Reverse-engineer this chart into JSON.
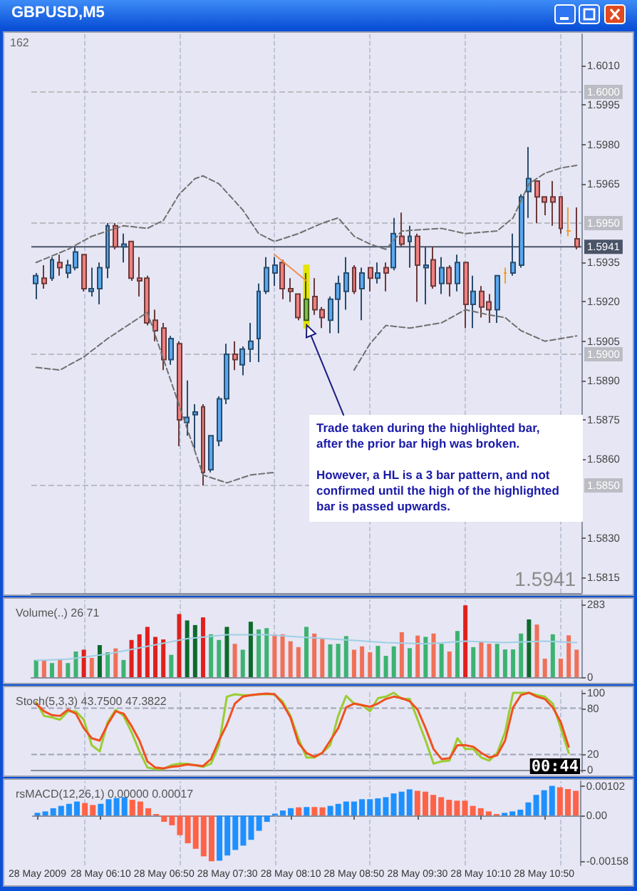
{
  "chart_data": [
    {
      "type": "candlestick",
      "title": "GBPUSD,M5",
      "tick_labels": "y",
      "xlim": [
        "2009-05-28T05:27",
        "2009-05-28T11:13"
      ],
      "x": [
        "2009-05-28T05:30",
        "2009-05-28T05:35",
        "2009-05-28T05:40",
        "2009-05-28T05:45",
        "2009-05-28T05:50",
        "2009-05-28T05:55",
        "2009-05-28T06:00",
        "2009-05-28T06:05",
        "2009-05-28T06:10",
        "2009-05-28T06:15",
        "2009-05-28T06:20",
        "2009-05-28T06:25",
        "2009-05-28T06:30",
        "2009-05-28T06:35",
        "2009-05-28T06:40",
        "2009-05-28T06:45",
        "2009-05-28T06:50",
        "2009-05-28T06:55",
        "2009-05-28T07:00",
        "2009-05-28T07:05",
        "2009-05-28T07:10",
        "2009-05-28T07:15",
        "2009-05-28T07:20",
        "2009-05-28T07:25",
        "2009-05-28T07:30",
        "2009-05-28T07:35",
        "2009-05-28T07:40",
        "2009-05-28T07:45",
        "2009-05-28T07:50",
        "2009-05-28T07:55",
        "2009-05-28T08:00",
        "2009-05-28T08:05",
        "2009-05-28T08:10",
        "2009-05-28T08:15",
        "2009-05-28T08:20",
        "2009-05-28T08:25",
        "2009-05-28T08:30",
        "2009-05-28T08:35",
        "2009-05-28T08:40",
        "2009-05-28T08:45",
        "2009-05-28T08:50",
        "2009-05-28T08:55",
        "2009-05-28T09:00",
        "2009-05-28T09:05",
        "2009-05-28T09:10",
        "2009-05-28T09:15",
        "2009-05-28T09:20",
        "2009-05-28T09:25",
        "2009-05-28T09:30",
        "2009-05-28T09:35",
        "2009-05-28T09:40",
        "2009-05-28T09:45",
        "2009-05-28T09:50",
        "2009-05-28T09:55",
        "2009-05-28T10:00",
        "2009-05-28T10:05",
        "2009-05-28T10:10",
        "2009-05-28T10:15",
        "2009-05-28T10:20",
        "2009-05-28T10:25",
        "2009-05-28T10:30",
        "2009-05-28T10:35",
        "2009-05-28T10:40",
        "2009-05-28T10:45",
        "2009-05-28T10:50",
        "2009-05-28T10:55",
        "2009-05-28T11:00",
        "2009-05-28T11:05",
        "2009-05-28T11:10"
      ],
      "ohlc": [
        [
          1.5927,
          1.5931,
          1.5921,
          1.593
        ],
        [
          1.5929,
          1.5934,
          1.5925,
          1.5927
        ],
        [
          1.5929,
          1.5937,
          1.5928,
          1.5936
        ],
        [
          1.5935,
          1.5938,
          1.593,
          1.5933
        ],
        [
          1.5931,
          1.5936,
          1.5929,
          1.5934
        ],
        [
          1.5933,
          1.5941,
          1.5932,
          1.5939
        ],
        [
          1.5938,
          1.5938,
          1.5924,
          1.5925
        ],
        [
          1.5924,
          1.5933,
          1.5922,
          1.5925
        ],
        [
          1.5925,
          1.5935,
          1.5919,
          1.5933
        ],
        [
          1.5933,
          1.595,
          1.5929,
          1.5949
        ],
        [
          1.5949,
          1.595,
          1.594,
          1.5941
        ],
        [
          1.5941,
          1.5946,
          1.5935,
          1.5942
        ],
        [
          1.5943,
          1.5943,
          1.5928,
          1.5929
        ],
        [
          1.5929,
          1.5937,
          1.5922,
          1.5928
        ],
        [
          1.5929,
          1.593,
          1.5911,
          1.5912
        ],
        [
          1.5913,
          1.5917,
          1.5905,
          1.5909
        ],
        [
          1.591,
          1.5912,
          1.5894,
          1.5898
        ],
        [
          1.5898,
          1.5907,
          1.5896,
          1.5906
        ],
        [
          1.5904,
          1.5905,
          1.5865,
          1.5875
        ],
        [
          1.5874,
          1.589,
          1.5869,
          1.5876
        ],
        [
          1.5877,
          1.5881,
          1.5864,
          1.5878
        ],
        [
          1.588,
          1.5881,
          1.585,
          1.5855
        ],
        [
          1.5856,
          1.5869,
          1.5855,
          1.5869
        ],
        [
          1.5867,
          1.5884,
          1.5865,
          1.5883
        ],
        [
          1.5883,
          1.5904,
          1.5881,
          1.59
        ],
        [
          1.59,
          1.5905,
          1.5894,
          1.5898
        ],
        [
          1.5896,
          1.5903,
          1.5892,
          1.5902
        ],
        [
          1.5902,
          1.5912,
          1.5897,
          1.5905
        ],
        [
          1.5906,
          1.5927,
          1.5897,
          1.5924
        ],
        [
          1.5924,
          1.5937,
          1.5923,
          1.5933
        ],
        [
          1.5931,
          1.5937,
          1.5926,
          1.5934
        ],
        [
          1.5935,
          1.5936,
          1.5921,
          1.5925
        ],
        [
          1.5925,
          1.5929,
          1.592,
          1.5924
        ],
        [
          1.5923,
          1.5923,
          1.5913,
          1.5914
        ],
        [
          1.5913,
          1.5931,
          1.5913,
          1.5921
        ],
        [
          1.5922,
          1.5929,
          1.5915,
          1.5917
        ],
        [
          1.5917,
          1.5918,
          1.591,
          1.5914
        ],
        [
          1.5913,
          1.5922,
          1.5908,
          1.5921
        ],
        [
          1.5921,
          1.593,
          1.5908,
          1.5927
        ],
        [
          1.5924,
          1.5937,
          1.5917,
          1.5931
        ],
        [
          1.5933,
          1.5934,
          1.5923,
          1.5924
        ],
        [
          1.5925,
          1.5933,
          1.5913,
          1.5931
        ],
        [
          1.5933,
          1.5933,
          1.5924,
          1.5929
        ],
        [
          1.5929,
          1.5935,
          1.5927,
          1.5931
        ],
        [
          1.5933,
          1.5935,
          1.5924,
          1.5931
        ],
        [
          1.5933,
          1.5952,
          1.5932,
          1.5946
        ],
        [
          1.5945,
          1.5954,
          1.5941,
          1.5942
        ],
        [
          1.5943,
          1.5949,
          1.5933,
          1.5945
        ],
        [
          1.5945,
          1.5946,
          1.592,
          1.5934
        ],
        [
          1.5933,
          1.5941,
          1.5919,
          1.5934
        ],
        [
          1.5936,
          1.5941,
          1.5925,
          1.5926
        ],
        [
          1.5927,
          1.5937,
          1.5923,
          1.5933
        ],
        [
          1.5933,
          1.5934,
          1.5922,
          1.5927
        ],
        [
          1.5927,
          1.5938,
          1.5924,
          1.5935
        ],
        [
          1.5935,
          1.5935,
          1.591,
          1.5919
        ],
        [
          1.5919,
          1.593,
          1.591,
          1.5924
        ],
        [
          1.5924,
          1.5926,
          1.5914,
          1.5918
        ],
        [
          1.592,
          1.5923,
          1.5912,
          1.5917
        ],
        [
          1.5917,
          1.593,
          1.5912,
          1.593
        ],
        [
          1.5931,
          1.5933,
          1.5927,
          1.5931
        ],
        [
          1.5931,
          1.5946,
          1.593,
          1.5935
        ],
        [
          1.5934,
          1.5961,
          1.5933,
          1.596
        ],
        [
          1.5962,
          1.5979,
          1.5952,
          1.5967
        ],
        [
          1.5966,
          1.5966,
          1.595,
          1.596
        ],
        [
          1.596,
          1.596,
          1.5953,
          1.5958
        ],
        [
          1.596,
          1.5966,
          1.5949,
          1.5958
        ],
        [
          1.596,
          1.596,
          1.5946,
          1.5948
        ],
        [
          1.5947,
          1.5956,
          1.5945,
          1.5947
        ],
        [
          1.5944,
          1.5956,
          1.594,
          1.5941
        ]
      ],
      "colors": [
        "#5aa8f0",
        "#f08080",
        "#5aa8f0",
        "#f08080",
        "#5aa8f0",
        "#5aa8f0",
        "#f08080",
        "#5aa8f0",
        "#5aa8f0",
        "#5aa8f0",
        "#f08080",
        "#5aa8f0",
        "#f08080",
        "#f08080",
        "#f08080",
        "#f08080",
        "#f08080",
        "#5aa8f0",
        "#f08080",
        "#5aa8f0",
        "#5aa8f0",
        "#f08080",
        "#5aa8f0",
        "#5aa8f0",
        "#5aa8f0",
        "#f08080",
        "#5aa8f0",
        "#5aa8f0",
        "#5aa8f0",
        "#5aa8f0",
        "#5aa8f0",
        "#f08080",
        "#f08080",
        "#f08080",
        "#7cc040",
        "#f08080",
        "#f08080",
        "#5aa8f0",
        "#5aa8f0",
        "#5aa8f0",
        "#f08080",
        "#5aa8f0",
        "#f08080",
        "#5aa8f0",
        "#f08080",
        "#5aa8f0",
        "#f08080",
        "#5aa8f0",
        "#f08080",
        "#5aa8f0",
        "#f08080",
        "#5aa8f0",
        "#f08080",
        "#5aa8f0",
        "#f08080",
        "#5aa8f0",
        "#f08080",
        "#f08080",
        "#5aa8f0",
        "#f0a030",
        "#5aa8f0",
        "#5aa8f0",
        "#5aa8f0",
        "#f08080",
        "#f08080",
        "#f08080",
        "#f08080",
        "#f0a030",
        "#f08080"
      ],
      "series": [
        {
          "type": "line",
          "color": "#707070",
          "line_style": "dashed",
          "x": [
            "2009-05-28T05:30",
            "2009-05-28T05:50",
            "2009-05-28T06:05",
            "2009-05-28T06:25",
            "2009-05-28T06:40",
            "2009-05-28T06:50",
            "2009-05-28T07:00",
            "2009-05-28T07:10",
            "2009-05-28T07:15",
            "2009-05-28T07:25",
            "2009-05-28T07:40",
            "2009-05-28T07:50",
            "2009-05-28T08:00",
            "2009-05-28T08:15",
            "2009-05-28T08:30",
            "2009-05-28T08:40",
            "2009-05-28T08:50",
            "2009-05-28T09:00",
            "2009-05-28T09:10",
            "2009-05-28T09:20",
            "2009-05-28T09:45",
            "2009-05-28T10:00",
            "2009-05-28T10:20",
            "2009-05-28T10:30",
            "2009-05-28T10:40",
            "2009-05-28T10:50",
            "2009-05-28T11:00",
            "2009-05-28T11:10"
          ],
          "values": [
            1.5935,
            1.594,
            1.5945,
            1.5949,
            1.5948,
            1.5951,
            1.5961,
            1.5967,
            1.5968,
            1.5965,
            1.5955,
            1.5946,
            1.5943,
            1.5946,
            1.595,
            1.5952,
            1.5945,
            1.5942,
            1.594,
            1.5947,
            1.5948,
            1.5946,
            1.5947,
            1.5952,
            1.5965,
            1.5969,
            1.5971,
            1.5972
          ]
        },
        {
          "type": "line",
          "color": "#707070",
          "line_style": "dashed",
          "x": [
            "2009-05-28T05:30",
            "2009-05-28T05:45",
            "2009-05-28T06:00",
            "2009-05-28T06:15",
            "2009-05-28T06:30",
            "2009-05-28T06:40",
            "2009-05-28T07:15",
            "2009-05-28T07:30",
            "2009-05-28T07:45",
            "2009-05-28T08:00"
          ],
          "values": [
            1.5895,
            1.5894,
            1.5899,
            1.5906,
            1.5912,
            1.5916,
            1.5854,
            1.5851,
            1.5854,
            1.5855
          ]
        },
        {
          "type": "line",
          "color": "#707070",
          "line_style": "dashed",
          "x": [
            "2009-05-28T08:50",
            "2009-05-28T09:00",
            "2009-05-28T09:10",
            "2009-05-28T09:25",
            "2009-05-28T09:45",
            "2009-05-28T10:00",
            "2009-05-28T10:15",
            "2009-05-28T10:25",
            "2009-05-28T10:35",
            "2009-05-28T10:50",
            "2009-05-28T11:10"
          ],
          "values": [
            1.5894,
            1.5904,
            1.5911,
            1.591,
            1.5912,
            1.5917,
            1.5915,
            1.5914,
            1.5909,
            1.5905,
            1.5907
          ]
        },
        {
          "type": "line",
          "color": "#f09050",
          "x": [
            "2009-05-28T08:00",
            "2009-05-28T08:20"
          ],
          "values": [
            1.5938,
            1.5928
          ]
        }
      ],
      "ylim": [
        1.5809,
        1.6022
      ],
      "yticks": [
        {
          "value": 1.601,
          "label": "1.6010"
        },
        1.5995,
        {
          "value": 1.598,
          "label": "1.5980"
        },
        1.5965,
        1.5935,
        {
          "value": 1.592,
          "label": "1.5920"
        },
        1.5905,
        {
          "value": 1.589,
          "label": "1.5890"
        },
        1.5875,
        {
          "value": 1.586,
          "label": "1.5860"
        },
        {
          "value": 1.583,
          "label": "1.5830"
        },
        1.5815
      ],
      "bands": [
        {
          "axis": "x",
          "from": "2009-05-28T08:18",
          "to": "2009-05-28T08:22",
          "color": "#e4e400"
        }
      ],
      "ref_lines": [
        {
          "axis": "y",
          "value": 1.6,
          "label": "1.6000",
          "color": "#bcbcc4",
          "line_style": "dashed"
        },
        {
          "axis": "y",
          "value": 1.595,
          "label": "1.5950",
          "color": "#bcbcc4",
          "line_style": "dashed"
        },
        {
          "axis": "y",
          "value": 1.59,
          "label": "1.5900",
          "color": "#bcbcc4",
          "line_style": "dashed"
        },
        {
          "axis": "y",
          "value": 1.585,
          "label": "1.5850",
          "color": "#bcbcc4",
          "line_style": "dashed"
        },
        {
          "axis": "y",
          "value": 1.5941,
          "label": "1.5941",
          "color": "#4a5468",
          "line_style": "solid"
        },
        {
          "axis": "x",
          "value": "2009-05-28T06:00",
          "color": "#b4bcd4",
          "line_style": "dashed"
        },
        {
          "axis": "x",
          "value": "2009-05-28T07:00",
          "color": "#b4bcd4",
          "line_style": "dashed"
        },
        {
          "axis": "x",
          "value": "2009-05-28T08:00",
          "color": "#b4bcd4",
          "line_style": "dashed"
        },
        {
          "axis": "x",
          "value": "2009-05-28T09:00",
          "color": "#b4bcd4",
          "line_style": "dashed"
        },
        {
          "axis": "x",
          "value": "2009-05-28T10:00",
          "color": "#b4bcd4",
          "line_style": "dashed"
        },
        {
          "axis": "x",
          "value": "2009-05-28T11:00",
          "color": "#b4bcd4",
          "line_style": "dashed"
        }
      ],
      "annotations": [
        "162",
        {
          "text": "Trade taken during the highlighted bar,\nafter the prior bar high was broken.",
          "x": "2009-05-28T08:20",
          "y": 1.5913
        },
        "However, a HL is a 3 bar pattern, and not\nconfirmed until the high of the highlighted\nbar is passed upwards.",
        "1.5941"
      ]
    },
    {
      "type": "bar",
      "title": "Volume(..) 26 71",
      "tick_labels": "y",
      "xlim": [
        "2009-05-28T05:27",
        "2009-05-28T11:13"
      ],
      "x": [
        "2009-05-28T05:30",
        "2009-05-28T05:35",
        "2009-05-28T05:40",
        "2009-05-28T05:45",
        "2009-05-28T05:50",
        "2009-05-28T05:55",
        "2009-05-28T06:00",
        "2009-05-28T06:05",
        "2009-05-28T06:10",
        "2009-05-28T06:15",
        "2009-05-28T06:20",
        "2009-05-28T06:25",
        "2009-05-28T06:30",
        "2009-05-28T06:35",
        "2009-05-28T06:40",
        "2009-05-28T06:45",
        "2009-05-28T06:50",
        "2009-05-28T06:55",
        "2009-05-28T07:00",
        "2009-05-28T07:05",
        "2009-05-28T07:10",
        "2009-05-28T07:15",
        "2009-05-28T07:20",
        "2009-05-28T07:25",
        "2009-05-28T07:30",
        "2009-05-28T07:35",
        "2009-05-28T07:40",
        "2009-05-28T07:45",
        "2009-05-28T07:50",
        "2009-05-28T07:55",
        "2009-05-28T08:00",
        "2009-05-28T08:05",
        "2009-05-28T08:10",
        "2009-05-28T08:15",
        "2009-05-28T08:20",
        "2009-05-28T08:25",
        "2009-05-28T08:30",
        "2009-05-28T08:35",
        "2009-05-28T08:40",
        "2009-05-28T08:45",
        "2009-05-28T08:50",
        "2009-05-28T08:55",
        "2009-05-28T09:00",
        "2009-05-28T09:05",
        "2009-05-28T09:10",
        "2009-05-28T09:15",
        "2009-05-28T09:20",
        "2009-05-28T09:25",
        "2009-05-28T09:30",
        "2009-05-28T09:35",
        "2009-05-28T09:40",
        "2009-05-28T09:45",
        "2009-05-28T09:50",
        "2009-05-28T09:55",
        "2009-05-28T10:00",
        "2009-05-28T10:05",
        "2009-05-28T10:10",
        "2009-05-28T10:15",
        "2009-05-28T10:20",
        "2009-05-28T10:25",
        "2009-05-28T10:30",
        "2009-05-28T10:35",
        "2009-05-28T10:40",
        "2009-05-28T10:45",
        "2009-05-28T10:50",
        "2009-05-28T10:55",
        "2009-05-28T11:00",
        "2009-05-28T11:05",
        "2009-05-28T11:10"
      ],
      "series": [
        {
          "values": [
            67,
            67,
            55,
            67,
            55,
            100,
            107,
            75,
            125,
            97,
            112,
            67,
            145,
            167,
            196,
            157,
            147,
            87,
            246,
            221,
            203,
            233,
            167,
            145,
            196,
            130,
            107,
            216,
            186,
            191,
            167,
            167,
            140,
            117,
            196,
            170,
            150,
            128,
            130,
            160,
            107,
            120,
            97,
            122,
            83,
            120,
            175,
            113,
            162,
            157,
            170,
            130,
            100,
            180,
            280,
            117,
            137,
            130,
            130,
            108,
            108,
            170,
            225,
            205,
            72,
            167,
            72,
            163,
            107
          ],
          "colors": [
            "#3cb371",
            "#f07058",
            "#3cb371",
            "#f07058",
            "#3cb371",
            "#3cb371",
            "#e0201c",
            "#f07058",
            "#0b6b2b",
            "#3cb371",
            "#f07058",
            "#3cb371",
            "#e0201c",
            "#e0201c",
            "#e0201c",
            "#e0201c",
            "#e0201c",
            "#3cb371",
            "#e0201c",
            "#0b6b2b",
            "#0b6b2b",
            "#e0201c",
            "#3cb371",
            "#3cb371",
            "#0b6b2b",
            "#f07058",
            "#3cb371",
            "#0b6b2b",
            "#3cb371",
            "#3cb371",
            "#f07058",
            "#f07058",
            "#f07058",
            "#f07058",
            "#3cb371",
            "#f07058",
            "#f07058",
            "#3cb371",
            "#3cb371",
            "#3cb371",
            "#f07058",
            "#f07058",
            "#f07058",
            "#3cb371",
            "#3cb371",
            "#3cb371",
            "#f07058",
            "#3cb371",
            "#f07058",
            "#3cb371",
            "#f07058",
            "#3cb371",
            "#f07058",
            "#3cb371",
            "#e0201c",
            "#3cb371",
            "#f07058",
            "#f07058",
            "#3cb371",
            "#3cb371",
            "#3cb371",
            "#3cb371",
            "#0b6b2b",
            "#f07058",
            "#f07058",
            "#3cb371",
            "#f07058",
            "#f07058",
            "#f07058"
          ]
        },
        {
          "type": "line",
          "color": "#9fd0e4",
          "x": [
            "2009-05-28T05:30",
            "2009-05-28T05:50",
            "2009-05-28T06:15",
            "2009-05-28T06:40",
            "2009-05-28T07:05",
            "2009-05-28T07:30",
            "2009-05-28T07:55",
            "2009-05-28T08:20",
            "2009-05-28T08:45",
            "2009-05-28T09:10",
            "2009-05-28T09:35",
            "2009-05-28T10:00",
            "2009-05-28T10:25",
            "2009-05-28T10:50",
            "2009-05-28T11:10"
          ],
          "values": [
            65,
            70,
            90,
            120,
            150,
            165,
            165,
            155,
            145,
            135,
            130,
            140,
            135,
            140,
            135
          ]
        }
      ],
      "ylim": [
        0,
        300
      ],
      "yticks": [
        0,
        283
      ],
      "ref_lines": [
        {
          "axis": "x",
          "value": "2009-05-28T06:00",
          "color": "#b4bcd4",
          "line_style": "dashed"
        },
        {
          "axis": "x",
          "value": "2009-05-28T07:00",
          "color": "#b4bcd4",
          "line_style": "dashed"
        },
        {
          "axis": "x",
          "value": "2009-05-28T08:00",
          "color": "#b4bcd4",
          "line_style": "dashed"
        },
        {
          "axis": "x",
          "value": "2009-05-28T09:00",
          "color": "#b4bcd4",
          "line_style": "dashed"
        },
        {
          "axis": "x",
          "value": "2009-05-28T10:00",
          "color": "#b4bcd4",
          "line_style": "dashed"
        },
        {
          "axis": "x",
          "value": "2009-05-28T11:00",
          "color": "#b4bcd4",
          "line_style": "dashed"
        }
      ]
    },
    {
      "type": "line",
      "title": "Stoch(5,3,3) 43.7500 47.3822",
      "tick_labels": "y",
      "xlim": [
        "2009-05-28T05:27",
        "2009-05-28T11:13"
      ],
      "x": [
        "2009-05-28T05:30",
        "2009-05-28T05:35",
        "2009-05-28T05:40",
        "2009-05-28T05:45",
        "2009-05-28T05:50",
        "2009-05-28T05:55",
        "2009-05-28T06:00",
        "2009-05-28T06:05",
        "2009-05-28T06:10",
        "2009-05-28T06:15",
        "2009-05-28T06:20",
        "2009-05-28T06:25",
        "2009-05-28T06:30",
        "2009-05-28T06:35",
        "2009-05-28T06:40",
        "2009-05-28T06:45",
        "2009-05-28T06:50",
        "2009-05-28T06:55",
        "2009-05-28T07:00",
        "2009-05-28T07:05",
        "2009-05-28T07:10",
        "2009-05-28T07:15",
        "2009-05-28T07:20",
        "2009-05-28T07:25",
        "2009-05-28T07:30",
        "2009-05-28T07:35",
        "2009-05-28T07:40",
        "2009-05-28T07:45",
        "2009-05-28T07:50",
        "2009-05-28T07:55",
        "2009-05-28T08:00",
        "2009-05-28T08:05",
        "2009-05-28T08:10",
        "2009-05-28T08:15",
        "2009-05-28T08:20",
        "2009-05-28T08:25",
        "2009-05-28T08:30",
        "2009-05-28T08:35",
        "2009-05-28T08:40",
        "2009-05-28T08:45",
        "2009-05-28T08:50",
        "2009-05-28T08:55",
        "2009-05-28T09:00",
        "2009-05-28T09:05",
        "2009-05-28T09:10",
        "2009-05-28T09:15",
        "2009-05-28T09:20",
        "2009-05-28T09:25",
        "2009-05-28T09:30",
        "2009-05-28T09:35",
        "2009-05-28T09:40",
        "2009-05-28T09:45",
        "2009-05-28T09:50",
        "2009-05-28T09:55",
        "2009-05-28T10:00",
        "2009-05-28T10:05",
        "2009-05-28T10:10",
        "2009-05-28T10:15",
        "2009-05-28T10:20",
        "2009-05-28T10:25",
        "2009-05-28T10:30",
        "2009-05-28T10:35",
        "2009-05-28T10:40",
        "2009-05-28T10:45",
        "2009-05-28T10:50",
        "2009-05-28T10:55",
        "2009-05-28T11:00",
        "2009-05-28T11:05"
      ],
      "series": [
        {
          "color": "#9acd32",
          "values": [
            88,
            70,
            68,
            65,
            76,
            76,
            65,
            32,
            24,
            62,
            78,
            70,
            49,
            24,
            3,
            1,
            1,
            6,
            8,
            8,
            6,
            4,
            8,
            32,
            95,
            98,
            97,
            97,
            98,
            98,
            98,
            89,
            70,
            41,
            16,
            16,
            22,
            32,
            70,
            96,
            86,
            84,
            76,
            93,
            95,
            100,
            92,
            92,
            65,
            38,
            8,
            11,
            12,
            41,
            27,
            27,
            16,
            12,
            22,
            49,
            100,
            100,
            100,
            97,
            95,
            86,
            54,
            22
          ]
        },
        {
          "color": "#f05020",
          "values": [
            86,
            76,
            71,
            70,
            78,
            73,
            54,
            41,
            38,
            59,
            76,
            73,
            57,
            38,
            11,
            3,
            2,
            4,
            5,
            7,
            6,
            5,
            14,
            38,
            59,
            86,
            95,
            97,
            98,
            99,
            98,
            86,
            68,
            35,
            22,
            17,
            22,
            38,
            54,
            81,
            86,
            84,
            82,
            86,
            92,
            95,
            93,
            89,
            78,
            54,
            27,
            14,
            15,
            32,
            32,
            30,
            22,
            16,
            19,
            38,
            81,
            97,
            100,
            95,
            92,
            81,
            62,
            30
          ]
        }
      ],
      "ylim": [
        -3,
        103
      ],
      "yticks": [
        0,
        20,
        80,
        100
      ],
      "ref_lines": [
        {
          "axis": "y",
          "value": 80,
          "color": "#a0a4b4",
          "line_style": "dashed"
        },
        {
          "axis": "y",
          "value": 20,
          "color": "#a0a4b4",
          "line_style": "dashed"
        },
        {
          "axis": "x",
          "value": "2009-05-28T06:00",
          "color": "#b4bcd4",
          "line_style": "dashed"
        },
        {
          "axis": "x",
          "value": "2009-05-28T07:00",
          "color": "#b4bcd4",
          "line_style": "dashed"
        },
        {
          "axis": "x",
          "value": "2009-05-28T08:00",
          "color": "#b4bcd4",
          "line_style": "dashed"
        },
        {
          "axis": "x",
          "value": "2009-05-28T09:00",
          "color": "#b4bcd4",
          "line_style": "dashed"
        },
        {
          "axis": "x",
          "value": "2009-05-28T10:00",
          "color": "#b4bcd4",
          "line_style": "dashed"
        },
        {
          "axis": "x",
          "value": "2009-05-28T11:00",
          "color": "#b4bcd4",
          "line_style": "dashed"
        }
      ],
      "annotations": [
        "00:44"
      ]
    },
    {
      "type": "bar",
      "title": "rsMACD(12,26,1) 0.00000 0.00017",
      "xlim": [
        "2009-05-28T05:27",
        "2009-05-28T11:13"
      ],
      "x": [
        "2009-05-28T05:30",
        "2009-05-28T05:35",
        "2009-05-28T05:40",
        "2009-05-28T05:45",
        "2009-05-28T05:50",
        "2009-05-28T05:55",
        "2009-05-28T06:00",
        "2009-05-28T06:05",
        "2009-05-28T06:10",
        "2009-05-28T06:15",
        "2009-05-28T06:20",
        "2009-05-28T06:25",
        "2009-05-28T06:30",
        "2009-05-28T06:35",
        "2009-05-28T06:40",
        "2009-05-28T06:45",
        "2009-05-28T06:50",
        "2009-05-28T06:55",
        "2009-05-28T07:00",
        "2009-05-28T07:05",
        "2009-05-28T07:10",
        "2009-05-28T07:15",
        "2009-05-28T07:20",
        "2009-05-28T07:25",
        "2009-05-28T07:30",
        "2009-05-28T07:35",
        "2009-05-28T07:40",
        "2009-05-28T07:45",
        "2009-05-28T07:50",
        "2009-05-28T07:55",
        "2009-05-28T08:00",
        "2009-05-28T08:05",
        "2009-05-28T08:10",
        "2009-05-28T08:15",
        "2009-05-28T08:20",
        "2009-05-28T08:25",
        "2009-05-28T08:30",
        "2009-05-28T08:35",
        "2009-05-28T08:40",
        "2009-05-28T08:45",
        "2009-05-28T08:50",
        "2009-05-28T08:55",
        "2009-05-28T09:00",
        "2009-05-28T09:05",
        "2009-05-28T09:10",
        "2009-05-28T09:15",
        "2009-05-28T09:20",
        "2009-05-28T09:25",
        "2009-05-28T09:30",
        "2009-05-28T09:35",
        "2009-05-28T09:40",
        "2009-05-28T09:45",
        "2009-05-28T09:50",
        "2009-05-28T09:55",
        "2009-05-28T10:00",
        "2009-05-28T10:05",
        "2009-05-28T10:10",
        "2009-05-28T10:15",
        "2009-05-28T10:20",
        "2009-05-28T10:25",
        "2009-05-28T10:30",
        "2009-05-28T10:35",
        "2009-05-28T10:40",
        "2009-05-28T10:45",
        "2009-05-28T10:50",
        "2009-05-28T10:55",
        "2009-05-28T11:00",
        "2009-05-28T11:05",
        "2009-05-28T11:10"
      ],
      "values": [
        9e-05,
        0.00014,
        0.00025,
        0.00033,
        0.0004,
        0.00048,
        0.00043,
        0.00036,
        0.0004,
        0.00056,
        0.0006,
        0.00063,
        0.00054,
        0.00048,
        0.00025,
        5e-05,
        -0.00022,
        -0.00034,
        -0.00068,
        -0.00096,
        -0.00115,
        -0.00141,
        -0.00158,
        -0.00156,
        -0.00138,
        -0.00119,
        -0.00104,
        -0.00084,
        -0.00053,
        -0.00022,
        6e-05,
        0.00017,
        0.00025,
        0.00028,
        0.00029,
        0.00029,
        0.00028,
        0.00033,
        0.0004,
        0.00048,
        0.00048,
        0.00056,
        0.00056,
        0.00059,
        0.00063,
        0.00076,
        0.00082,
        0.0009,
        0.00085,
        0.00082,
        0.00071,
        0.00063,
        0.00054,
        0.00051,
        0.00051,
        0.00033,
        0.00025,
        0.00014,
        5e-05,
        9e-05,
        0.00014,
        0.0002,
        0.00045,
        0.00071,
        0.00087,
        0.00102,
        0.00097,
        0.00091,
        0.00085
      ],
      "colors": [
        "#1e90ff",
        "#1e90ff",
        "#1e90ff",
        "#1e90ff",
        "#1e90ff",
        "#1e90ff",
        "#ff6347",
        "#ff6347",
        "#1e90ff",
        "#1e90ff",
        "#1e90ff",
        "#1e90ff",
        "#ff6347",
        "#ff6347",
        "#ff6347",
        "#ff6347",
        "#ff6347",
        "#ff6347",
        "#ff6347",
        "#ff6347",
        "#ff6347",
        "#ff6347",
        "#ff6347",
        "#1e90ff",
        "#1e90ff",
        "#1e90ff",
        "#1e90ff",
        "#1e90ff",
        "#1e90ff",
        "#1e90ff",
        "#1e90ff",
        "#1e90ff",
        "#1e90ff",
        "#ff6347",
        "#1e90ff",
        "#ff6347",
        "#ff6347",
        "#1e90ff",
        "#1e90ff",
        "#1e90ff",
        "#1e90ff",
        "#1e90ff",
        "#1e90ff",
        "#1e90ff",
        "#1e90ff",
        "#1e90ff",
        "#1e90ff",
        "#1e90ff",
        "#ff6347",
        "#ff6347",
        "#ff6347",
        "#ff6347",
        "#ff6347",
        "#ff6347",
        "#ff6347",
        "#ff6347",
        "#ff6347",
        "#ff6347",
        "#ff6347",
        "#1e90ff",
        "#1e90ff",
        "#1e90ff",
        "#1e90ff",
        "#1e90ff",
        "#1e90ff",
        "#1e90ff",
        "#ff6347",
        "#ff6347",
        "#ff6347"
      ],
      "ylim": [
        -0.00172,
        0.00118
      ],
      "yticks": [
        0.00102,
        {
          "value": 0,
          "label": "0.00"
        },
        -0.00158
      ],
      "xticks": [
        {
          "value": "2009-05-28T05:30",
          "label": "28 May 2009"
        },
        {
          "value": "2009-05-28T06:10",
          "label": "28 May 06:10"
        },
        {
          "value": "2009-05-28T06:50",
          "label": "28 May 06:50"
        },
        {
          "value": "2009-05-28T07:30",
          "label": "28 May 07:30"
        },
        {
          "value": "2009-05-28T08:10",
          "label": "28 May 08:10"
        },
        {
          "value": "2009-05-28T08:50",
          "label": "28 May 08:50"
        },
        {
          "value": "2009-05-28T09:30",
          "label": "28 May 09:30"
        },
        {
          "value": "2009-05-28T10:10",
          "label": "28 May 10:10"
        },
        {
          "value": "2009-05-28T10:50",
          "label": "28 May 10:50"
        }
      ],
      "ref_lines": [
        {
          "axis": "x",
          "value": "2009-05-28T06:00",
          "color": "#b4bcd4",
          "line_style": "dashed"
        },
        {
          "axis": "x",
          "value": "2009-05-28T07:00",
          "color": "#b4bcd4",
          "line_style": "dashed"
        },
        {
          "axis": "x",
          "value": "2009-05-28T08:00",
          "color": "#b4bcd4",
          "line_style": "dashed"
        },
        {
          "axis": "x",
          "value": "2009-05-28T09:00",
          "color": "#b4bcd4",
          "line_style": "dashed"
        },
        {
          "axis": "x",
          "value": "2009-05-28T10:00",
          "color": "#b4bcd4",
          "line_style": "dashed"
        },
        {
          "axis": "x",
          "value": "2009-05-28T11:00",
          "color": "#b4bcd4",
          "line_style": "dashed"
        }
      ]
    }
  ]
}
